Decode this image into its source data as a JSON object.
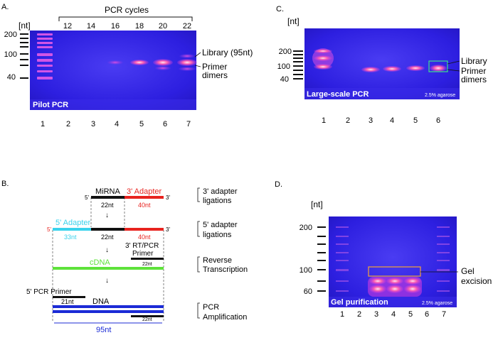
{
  "panel_a": {
    "letter": "A.",
    "unit": "[nt]",
    "sizes": [
      "200",
      "100",
      "40"
    ],
    "cycles_header": "PCR cycles",
    "cycles": [
      "12",
      "14",
      "16",
      "18",
      "20",
      "22"
    ],
    "gel_label": "Pilot PCR",
    "lanes": [
      "1",
      "2",
      "3",
      "4",
      "5",
      "6",
      "7"
    ],
    "library_label": "Library (95nt)",
    "primer_label_1": "Primer",
    "primer_label_2": "dimers"
  },
  "panel_c": {
    "letter": "C.",
    "unit": "[nt]",
    "sizes": [
      "200",
      "100",
      "40"
    ],
    "gel_label": "Large-scale PCR",
    "agarose": "2.5% agarose",
    "lanes": [
      "1",
      "2",
      "3",
      "4",
      "5",
      "6"
    ],
    "library_label": "Library",
    "primer_label_1": "Primer",
    "primer_label_2": "dimers"
  },
  "panel_b": {
    "letter": "B.",
    "mirna": "MiRNA",
    "adapter3": "3' Adapter",
    "five_prime": "5'",
    "three_prime": "3'",
    "nt22": "22nt",
    "nt40": "40nt",
    "adapter5": "5' Adapter",
    "nt33": "33nt",
    "rt_primer_1": "3' RT/PCR",
    "rt_primer_2": "Primer",
    "cdna": "cDNA",
    "pcr_primer_5": "5' PCR Primer",
    "nt21": "21nt",
    "dna": "DNA",
    "total": "95nt",
    "step1_a": "3' adapter",
    "step1_b": "ligations",
    "step2_a": "5' adapter",
    "step2_b": "ligations",
    "step3_a": "Reverse",
    "step3_b": "Transcription",
    "step4_a": "PCR",
    "step4_b": "Amplification",
    "colors": {
      "adapter3": "#e8231f",
      "adapter5": "#39d2ec",
      "cdna": "#5ee23a",
      "dna": "#1b2bd6"
    }
  },
  "panel_d": {
    "letter": "D.",
    "unit": "[nt]",
    "sizes": [
      "200",
      "100",
      "60"
    ],
    "gel_label": "Gel purification",
    "agarose": "2.5% agarose",
    "lanes": [
      "1",
      "2",
      "3",
      "4",
      "5",
      "6",
      "7"
    ],
    "excision_1": "Gel",
    "excision_2": "excision"
  }
}
